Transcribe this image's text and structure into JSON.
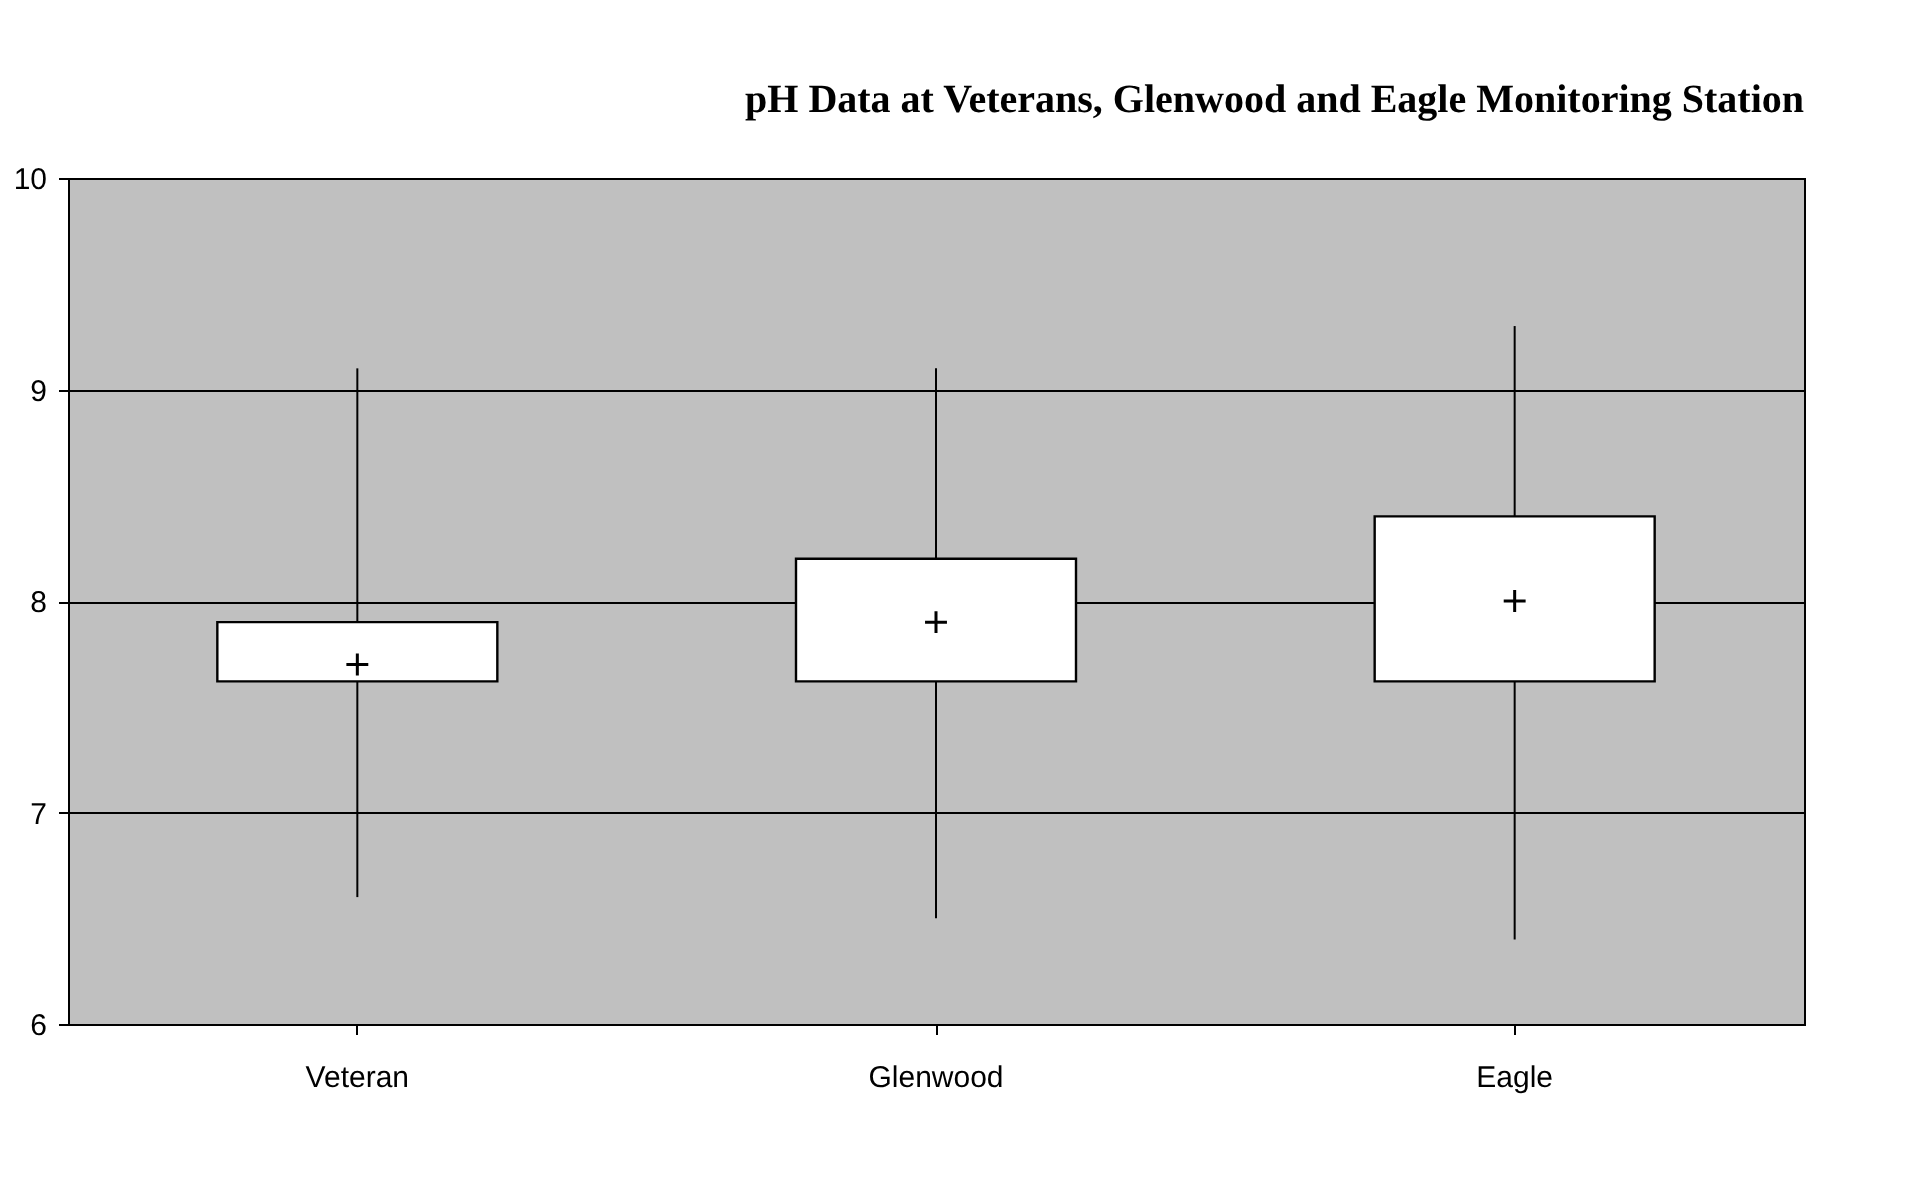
{
  "chart_data": {
    "type": "box",
    "title": "pH Data at Veterans, Glenwood and Eagle Monitoring Station",
    "categories": [
      "Veteran",
      "Glenwood",
      "Eagle"
    ],
    "boxes": [
      {
        "low": 6.6,
        "q1": 7.62,
        "median": 7.7,
        "q3": 7.9,
        "high": 9.1
      },
      {
        "low": 6.5,
        "q1": 7.62,
        "median": 7.9,
        "q3": 8.2,
        "high": 9.1
      },
      {
        "low": 6.4,
        "q1": 7.62,
        "median": 8.0,
        "q3": 8.4,
        "high": 9.3
      }
    ],
    "ylim": [
      6,
      10
    ],
    "yticks": [
      6,
      7,
      8,
      9,
      10
    ],
    "grid": "y",
    "marker": "cross"
  }
}
